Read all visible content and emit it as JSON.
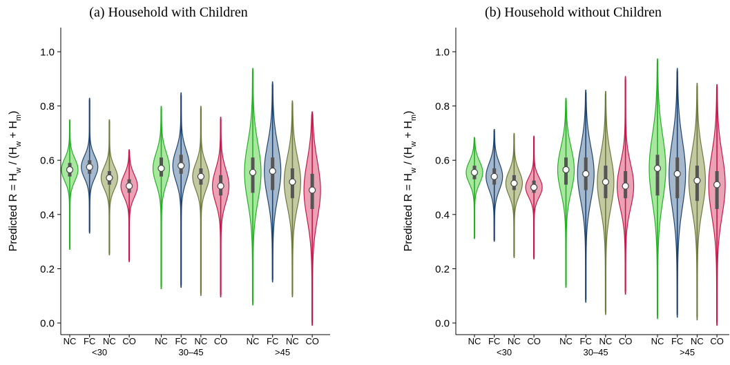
{
  "chart_data": [
    {
      "type": "violin",
      "title": "(a) Household with Children",
      "ylabel": [
        {
          "text": "Predicted R = H",
          "sub": false
        },
        {
          "text": "w",
          "sub": true
        },
        {
          "text": " / (H",
          "sub": false
        },
        {
          "text": "w",
          "sub": true
        },
        {
          "text": " + H",
          "sub": false
        },
        {
          "text": "m",
          "sub": true
        },
        {
          "text": ")",
          "sub": false
        }
      ],
      "ylim": [
        -0.043,
        1.089
      ],
      "yticks": [
        {
          "value": 0,
          "label": "0.0"
        },
        0.2,
        0.4,
        0.6,
        0.8,
        {
          "value": 1,
          "label": "1.0"
        }
      ],
      "groups": [
        {
          "label": "<30",
          "violins": [
            {
              "name": "NC",
              "color": "#22b022",
              "fill": "#a9e6a0",
              "min": 0.27,
              "q1": 0.54,
              "median": 0.565,
              "q3": 0.59,
              "max": 0.75
            },
            {
              "name": "FC",
              "color": "#1d4471",
              "fill": "#a5b8cc",
              "min": 0.33,
              "q1": 0.55,
              "median": 0.575,
              "q3": 0.6,
              "max": 0.83
            },
            {
              "name": "NC",
              "color": "#6b7a3a",
              "fill": "#c2c9a3",
              "min": 0.25,
              "q1": 0.51,
              "median": 0.535,
              "q3": 0.56,
              "max": 0.75
            },
            {
              "name": "CO",
              "color": "#c4174a",
              "fill": "#eba2b5",
              "min": 0.225,
              "q1": 0.48,
              "median": 0.505,
              "q3": 0.53,
              "max": 0.64
            }
          ]
        },
        {
          "label": "30–45",
          "violins": [
            {
              "name": "NC",
              "color": "#22b022",
              "fill": "#a9e6a0",
              "min": 0.125,
              "q1": 0.54,
              "median": 0.57,
              "q3": 0.61,
              "max": 0.8
            },
            {
              "name": "FC",
              "color": "#1d4471",
              "fill": "#a5b8cc",
              "min": 0.13,
              "q1": 0.55,
              "median": 0.58,
              "q3": 0.62,
              "max": 0.85
            },
            {
              "name": "NC",
              "color": "#6b7a3a",
              "fill": "#c2c9a3",
              "min": 0.1,
              "q1": 0.51,
              "median": 0.54,
              "q3": 0.57,
              "max": 0.8
            },
            {
              "name": "CO",
              "color": "#c4174a",
              "fill": "#eba2b5",
              "min": 0.095,
              "q1": 0.47,
              "median": 0.505,
              "q3": 0.545,
              "max": 0.76
            }
          ]
        },
        {
          "label": ">45",
          "violins": [
            {
              "name": "NC",
              "color": "#22b022",
              "fill": "#a9e6a0",
              "min": 0.065,
              "q1": 0.48,
              "median": 0.555,
              "q3": 0.61,
              "max": 0.94
            },
            {
              "name": "FC",
              "color": "#1d4471",
              "fill": "#a5b8cc",
              "min": 0.15,
              "q1": 0.49,
              "median": 0.56,
              "q3": 0.61,
              "max": 0.89
            },
            {
              "name": "NC",
              "color": "#6b7a3a",
              "fill": "#c2c9a3",
              "min": 0.095,
              "q1": 0.46,
              "median": 0.52,
              "q3": 0.57,
              "max": 0.82
            },
            {
              "name": "CO",
              "color": "#c4174a",
              "fill": "#eba2b5",
              "min": -0.01,
              "q1": 0.42,
              "median": 0.49,
              "q3": 0.55,
              "max": 0.78
            }
          ]
        }
      ]
    },
    {
      "type": "violin",
      "title": "(b) Household without Children",
      "ylabel": [
        {
          "text": "Predicted R = H",
          "sub": false
        },
        {
          "text": "w",
          "sub": true
        },
        {
          "text": " / (H",
          "sub": false
        },
        {
          "text": "w",
          "sub": true
        },
        {
          "text": " + H",
          "sub": false
        },
        {
          "text": "m",
          "sub": true
        },
        {
          "text": ")",
          "sub": false
        }
      ],
      "ylim": [
        -0.043,
        1.089
      ],
      "yticks": [
        {
          "value": 0,
          "label": "0.0"
        },
        0.2,
        0.4,
        0.6,
        0.8,
        {
          "value": 1,
          "label": "1.0"
        }
      ],
      "groups": [
        {
          "label": "<30",
          "violins": [
            {
              "name": "NC",
              "color": "#22b022",
              "fill": "#a9e6a0",
              "min": 0.31,
              "q1": 0.53,
              "median": 0.555,
              "q3": 0.58,
              "max": 0.685
            },
            {
              "name": "FC",
              "color": "#1d4471",
              "fill": "#a5b8cc",
              "min": 0.3,
              "q1": 0.51,
              "median": 0.54,
              "q3": 0.57,
              "max": 0.715
            },
            {
              "name": "NC",
              "color": "#6b7a3a",
              "fill": "#c2c9a3",
              "min": 0.24,
              "q1": 0.49,
              "median": 0.515,
              "q3": 0.545,
              "max": 0.7
            },
            {
              "name": "CO",
              "color": "#c4174a",
              "fill": "#eba2b5",
              "min": 0.235,
              "q1": 0.48,
              "median": 0.5,
              "q3": 0.525,
              "max": 0.69
            }
          ]
        },
        {
          "label": "30–45",
          "violins": [
            {
              "name": "NC",
              "color": "#22b022",
              "fill": "#a9e6a0",
              "min": 0.13,
              "q1": 0.51,
              "median": 0.565,
              "q3": 0.61,
              "max": 0.83
            },
            {
              "name": "FC",
              "color": "#1d4471",
              "fill": "#a5b8cc",
              "min": 0.075,
              "q1": 0.49,
              "median": 0.55,
              "q3": 0.61,
              "max": 0.86
            },
            {
              "name": "NC",
              "color": "#6b7a3a",
              "fill": "#c2c9a3",
              "min": 0.03,
              "q1": 0.46,
              "median": 0.52,
              "q3": 0.58,
              "max": 0.855
            },
            {
              "name": "CO",
              "color": "#c4174a",
              "fill": "#eba2b5",
              "min": 0.105,
              "q1": 0.46,
              "median": 0.505,
              "q3": 0.56,
              "max": 0.91
            }
          ]
        },
        {
          "label": ">45",
          "violins": [
            {
              "name": "NC",
              "color": "#22b022",
              "fill": "#a9e6a0",
              "min": 0.015,
              "q1": 0.47,
              "median": 0.57,
              "q3": 0.62,
              "max": 0.975
            },
            {
              "name": "FC",
              "color": "#1d4471",
              "fill": "#a5b8cc",
              "min": 0.02,
              "q1": 0.46,
              "median": 0.55,
              "q3": 0.61,
              "max": 0.94
            },
            {
              "name": "NC",
              "color": "#6b7a3a",
              "fill": "#c2c9a3",
              "min": 0.01,
              "q1": 0.45,
              "median": 0.525,
              "q3": 0.58,
              "max": 0.885
            },
            {
              "name": "CO",
              "color": "#c4174a",
              "fill": "#eba2b5",
              "min": -0.01,
              "q1": 0.42,
              "median": 0.51,
              "q3": 0.56,
              "max": 0.88
            }
          ]
        }
      ]
    }
  ]
}
